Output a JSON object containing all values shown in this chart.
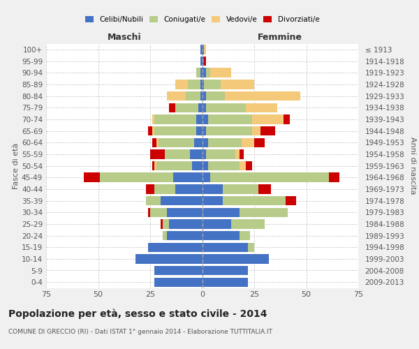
{
  "age_groups": [
    "0-4",
    "5-9",
    "10-14",
    "15-19",
    "20-24",
    "25-29",
    "30-34",
    "35-39",
    "40-44",
    "45-49",
    "50-54",
    "55-59",
    "60-64",
    "65-69",
    "70-74",
    "75-79",
    "80-84",
    "85-89",
    "90-94",
    "95-99",
    "100+"
  ],
  "birth_years": [
    "2009-2013",
    "2004-2008",
    "1999-2003",
    "1994-1998",
    "1989-1993",
    "1984-1988",
    "1979-1983",
    "1974-1978",
    "1969-1973",
    "1964-1968",
    "1959-1963",
    "1954-1958",
    "1949-1953",
    "1944-1948",
    "1939-1943",
    "1934-1938",
    "1929-1933",
    "1924-1928",
    "1919-1923",
    "1914-1918",
    "≤ 1913"
  ],
  "maschi": {
    "celibi": [
      23,
      23,
      32,
      26,
      17,
      16,
      17,
      20,
      13,
      14,
      5,
      6,
      4,
      3,
      3,
      2,
      1,
      1,
      1,
      1,
      1
    ],
    "coniugati": [
      0,
      0,
      0,
      0,
      2,
      3,
      8,
      7,
      10,
      35,
      17,
      12,
      17,
      20,
      20,
      11,
      7,
      6,
      2,
      0,
      0
    ],
    "vedovi": [
      0,
      0,
      0,
      0,
      0,
      0,
      0,
      0,
      0,
      0,
      1,
      0,
      1,
      1,
      1,
      0,
      9,
      6,
      0,
      0,
      0
    ],
    "divorziati": [
      0,
      0,
      0,
      0,
      0,
      1,
      1,
      0,
      4,
      8,
      1,
      7,
      2,
      2,
      0,
      3,
      0,
      0,
      0,
      0,
      0
    ]
  },
  "femmine": {
    "nubili": [
      22,
      22,
      32,
      22,
      18,
      14,
      18,
      10,
      10,
      4,
      3,
      2,
      3,
      2,
      3,
      2,
      2,
      1,
      2,
      1,
      1
    ],
    "coniugate": [
      0,
      0,
      0,
      3,
      5,
      16,
      23,
      30,
      17,
      57,
      15,
      14,
      16,
      22,
      21,
      19,
      9,
      8,
      2,
      0,
      0
    ],
    "vedove": [
      0,
      0,
      0,
      0,
      0,
      0,
      0,
      0,
      0,
      0,
      3,
      2,
      6,
      4,
      15,
      15,
      36,
      16,
      10,
      0,
      1
    ],
    "divorziate": [
      0,
      0,
      0,
      0,
      0,
      0,
      0,
      5,
      6,
      5,
      3,
      2,
      5,
      7,
      3,
      0,
      0,
      0,
      0,
      1,
      0
    ]
  },
  "colors": {
    "celibi_nubili": "#4472c4",
    "coniugati": "#b8cc8a",
    "vedovi": "#f5c97a",
    "divorziati": "#cc0000"
  },
  "xlim": 75,
  "title": "Popolazione per età, sesso e stato civile - 2014",
  "subtitle": "COMUNE DI GRECCIO (RI) - Dati ISTAT 1° gennaio 2014 - Elaborazione TUTTITALIA.IT",
  "xlabel_left": "Maschi",
  "xlabel_right": "Femmine",
  "ylabel_left": "Fasce di età",
  "ylabel_right": "Anni di nascita",
  "bg_color": "#f0f0f0",
  "plot_bg_color": "#ffffff"
}
